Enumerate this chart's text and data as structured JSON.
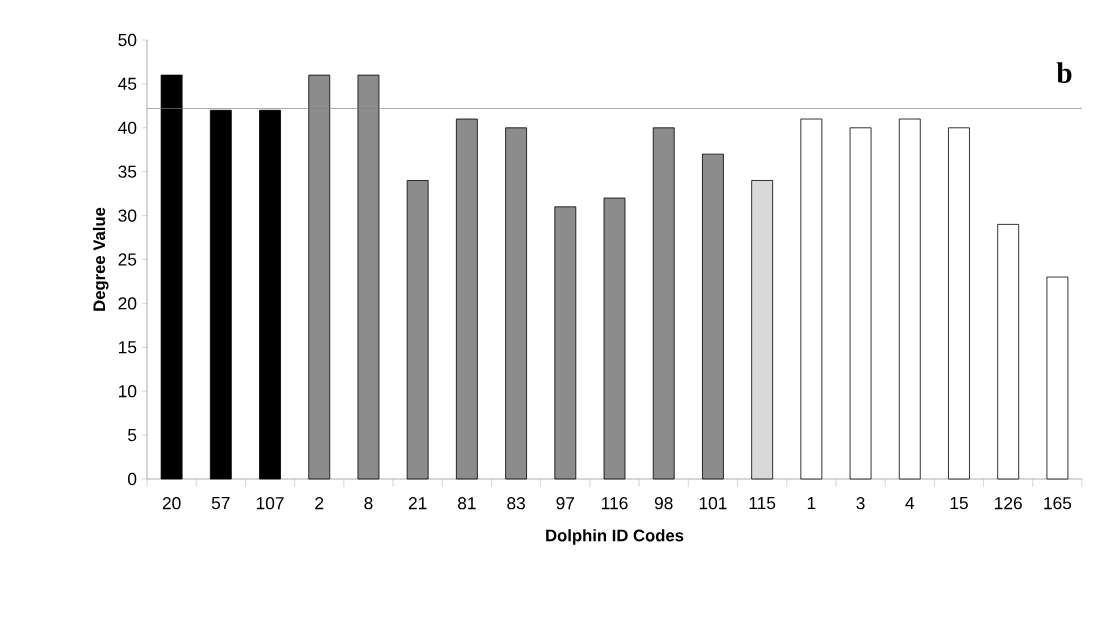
{
  "chart_data": {
    "type": "bar",
    "xlabel": "Dolphin ID Codes",
    "ylabel": "Degree Value",
    "categories": [
      "20",
      "57",
      "107",
      "2",
      "8",
      "21",
      "81",
      "83",
      "97",
      "116",
      "98",
      "101",
      "115",
      "1",
      "3",
      "4",
      "15",
      "126",
      "165"
    ],
    "values": [
      46,
      42,
      42,
      46,
      46,
      34,
      41,
      40,
      31,
      32,
      40,
      37,
      34,
      41,
      40,
      41,
      40,
      29,
      23
    ],
    "colors": [
      "#000000",
      "#000000",
      "#000000",
      "#8c8c8c",
      "#8c8c8c",
      "#8c8c8c",
      "#8c8c8c",
      "#8c8c8c",
      "#8c8c8c",
      "#8c8c8c",
      "#8c8c8c",
      "#8c8c8c",
      "#d9d9d9",
      "#ffffff",
      "#ffffff",
      "#ffffff",
      "#ffffff",
      "#ffffff",
      "#ffffff"
    ],
    "ylim": [
      0,
      50
    ],
    "yticks": [
      0,
      5,
      10,
      15,
      20,
      25,
      30,
      35,
      40,
      45,
      50
    ],
    "ref_lines": [
      {
        "axis": "y",
        "value": 42.2,
        "color": "#808080"
      }
    ],
    "annotations": [
      "b"
    ],
    "grid": false
  }
}
